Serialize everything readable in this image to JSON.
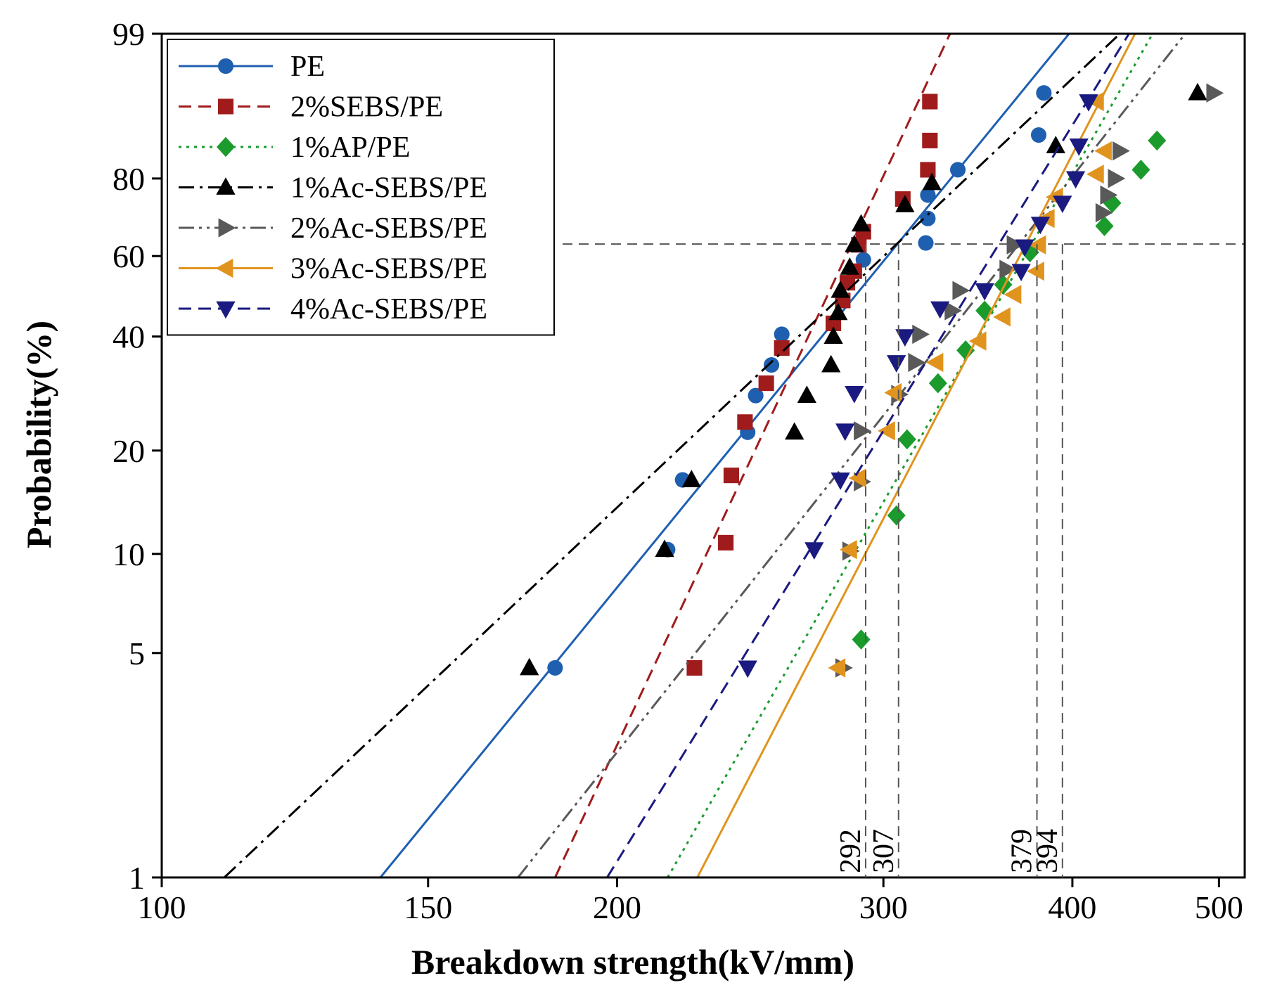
{
  "chart_data": {
    "type": "scatter",
    "title": "",
    "xlabel": "Breakdown strength(kV/mm)",
    "ylabel": "Probability(%)",
    "xscale": "log",
    "yscale": "weibull",
    "xlim": [
      100,
      520
    ],
    "ylim": [
      1,
      99
    ],
    "xticks": [
      100,
      150,
      200,
      300,
      400,
      500
    ],
    "xtick_labels": [
      "100",
      "150",
      "200",
      "300",
      "400",
      "500"
    ],
    "yticks": [
      1,
      5,
      10,
      20,
      40,
      60,
      80,
      99
    ],
    "ytick_labels": [
      "1",
      "5",
      "10",
      "20",
      "40",
      "60",
      "80",
      "99"
    ],
    "legend_position": "top-left",
    "reference_level": 63.2,
    "series": [
      {
        "name": "PE",
        "color": "#1f5fb0",
        "marker": "circle",
        "line": "solid",
        "fit_line": [
          [
            139.5,
            1
          ],
          [
            398,
            99
          ]
        ],
        "points": [
          [
            182,
            4.5
          ],
          [
            216,
            10.3
          ],
          [
            221,
            16.5
          ],
          [
            244,
            22.5
          ],
          [
            247,
            28.3
          ],
          [
            253,
            34
          ],
          [
            257,
            40.5
          ],
          [
            291,
            59
          ],
          [
            320,
            63.5
          ],
          [
            321,
            70
          ],
          [
            321,
            76
          ],
          [
            336,
            82
          ],
          [
            380,
            89
          ],
          [
            383,
            95
          ]
        ]
      },
      {
        "name": "2%SEBS/PE",
        "color": "#a01c1c",
        "marker": "square",
        "line": "dashed",
        "fit_line": [
          [
            182,
            1
          ],
          [
            332,
            99
          ]
        ],
        "points": [
          [
            225,
            4.5
          ],
          [
            236,
            10.8
          ],
          [
            238,
            17
          ],
          [
            243,
            24
          ],
          [
            251,
            30.5
          ],
          [
            257,
            37.5
          ],
          [
            278,
            43
          ],
          [
            282,
            48.5
          ],
          [
            284,
            53
          ],
          [
            287,
            56
          ],
          [
            289,
            63
          ],
          [
            291,
            66.5
          ],
          [
            309,
            75
          ],
          [
            321,
            82
          ],
          [
            322,
            88
          ],
          [
            322,
            94
          ]
        ]
      },
      {
        "name": "1%AP/PE",
        "color": "#1a9b2c",
        "marker": "diamond",
        "line": "dotted",
        "fit_line": [
          [
            216,
            1
          ],
          [
            452,
            99
          ]
        ],
        "points": [
          [
            290,
            5.5
          ],
          [
            306,
            13
          ],
          [
            311,
            21.5
          ],
          [
            326,
            30.5
          ],
          [
            340,
            37
          ],
          [
            350,
            46
          ],
          [
            360,
            52.5
          ],
          [
            375,
            61
          ],
          [
            420,
            68
          ],
          [
            425,
            74
          ],
          [
            444,
            82
          ],
          [
            455,
            88
          ]
        ]
      },
      {
        "name": "1%Ac-SEBS/PE",
        "color": "#000000",
        "marker": "triangle-up",
        "line": "dashdot",
        "fit_line": [
          [
            110,
            1
          ],
          [
            430,
            99
          ]
        ],
        "points": [
          [
            175,
            4.5
          ],
          [
            215,
            10.3
          ],
          [
            224,
            16.5
          ],
          [
            262,
            22.5
          ],
          [
            267,
            28.3
          ],
          [
            277,
            34
          ],
          [
            278,
            40
          ],
          [
            280,
            45.5
          ],
          [
            281,
            51
          ],
          [
            285,
            57
          ],
          [
            287,
            63
          ],
          [
            290,
            68.5
          ],
          [
            310,
            73.5
          ],
          [
            323,
            79
          ],
          [
            390,
            87
          ],
          [
            484,
            95
          ]
        ]
      },
      {
        "name": "2%Ac-SEBS/PE",
        "color": "#595959",
        "marker": "triangle-right",
        "line": "dashdotdot",
        "fit_line": [
          [
            172,
            1
          ],
          [
            475,
            99
          ]
        ],
        "points": [
          [
            282,
            4.5
          ],
          [
            285,
            10.2
          ],
          [
            290,
            16.3
          ],
          [
            290,
            22.7
          ],
          [
            307,
            28.5
          ],
          [
            315,
            34.5
          ],
          [
            317,
            40.5
          ],
          [
            333,
            46
          ],
          [
            337,
            51
          ],
          [
            362,
            56.5
          ],
          [
            366,
            63
          ],
          [
            419,
            71.5
          ],
          [
            422,
            76
          ],
          [
            427,
            80
          ],
          [
            430,
            86
          ],
          [
            496,
            95
          ]
        ]
      },
      {
        "name": "3%Ac-SEBS/PE",
        "color": "#e0941e",
        "marker": "triangle-left",
        "line": "solid",
        "fit_line": [
          [
            226,
            1
          ],
          [
            440,
            99
          ]
        ],
        "points": [
          [
            280,
            4.5
          ],
          [
            285,
            10.3
          ],
          [
            289,
            16.7
          ],
          [
            302,
            22.7
          ],
          [
            305,
            28.8
          ],
          [
            325,
            34.5
          ],
          [
            347,
            39
          ],
          [
            360,
            44.5
          ],
          [
            366,
            50
          ],
          [
            379,
            56
          ],
          [
            380,
            63
          ],
          [
            385,
            70
          ],
          [
            390,
            75.5
          ],
          [
            415,
            81
          ],
          [
            420,
            86
          ],
          [
            415,
            94
          ]
        ]
      },
      {
        "name": "4%Ac-SEBS/PE",
        "color": "#1a1a80",
        "marker": "triangle-down",
        "line": "dashed",
        "fit_line": [
          [
            197,
            1
          ],
          [
            436,
            99
          ]
        ],
        "points": [
          [
            244,
            4.5
          ],
          [
            270,
            10.3
          ],
          [
            281,
            16.5
          ],
          [
            283,
            22.7
          ],
          [
            287,
            28.7
          ],
          [
            306,
            34.5
          ],
          [
            310,
            40
          ],
          [
            327,
            46.5
          ],
          [
            350,
            51
          ],
          [
            370,
            56
          ],
          [
            372,
            62.5
          ],
          [
            381,
            68.5
          ],
          [
            394,
            74
          ],
          [
            402,
            80
          ],
          [
            404,
            87
          ],
          [
            410,
            94
          ]
        ]
      }
    ],
    "annotations": [
      {
        "label": "292",
        "x": 292,
        "color": "#555555"
      },
      {
        "label": "307",
        "x": 307,
        "color": "#555555"
      },
      {
        "label": "379",
        "x": 379,
        "color": "#555555"
      },
      {
        "label": "394",
        "x": 394,
        "color": "#555555"
      }
    ]
  }
}
